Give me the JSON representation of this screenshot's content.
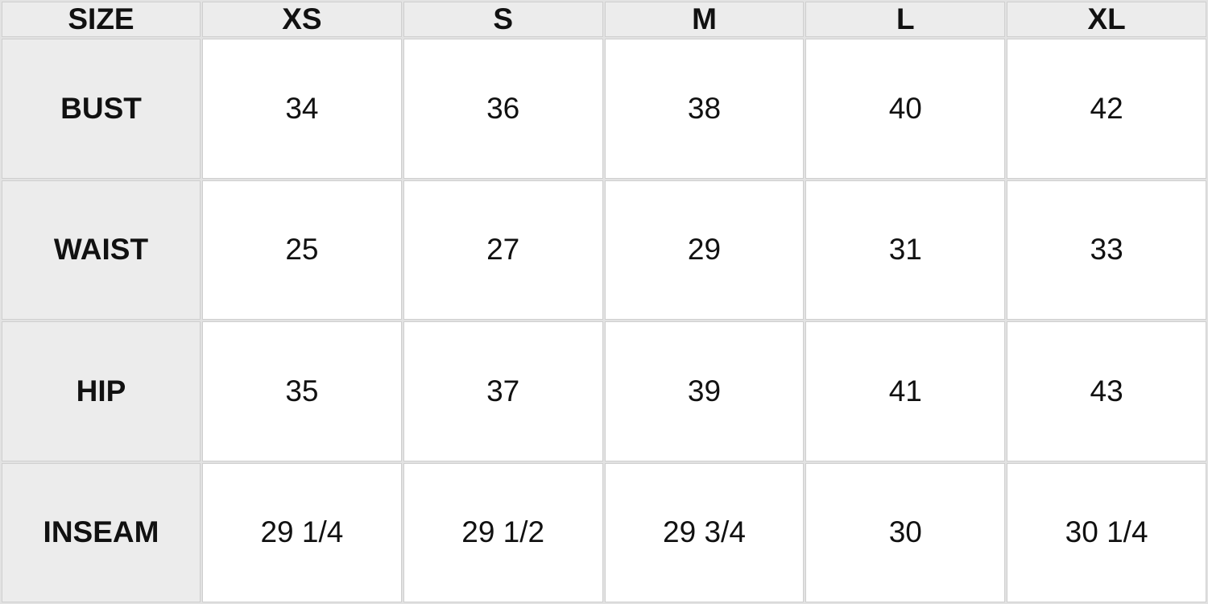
{
  "size_chart": {
    "header_label": "SIZE",
    "sizes": [
      "XS",
      "S",
      "M",
      "L",
      "XL"
    ],
    "rows": [
      {
        "label": "BUST",
        "values": [
          "34",
          "36",
          "38",
          "40",
          "42"
        ]
      },
      {
        "label": "WAIST",
        "values": [
          "25",
          "27",
          "29",
          "31",
          "33"
        ]
      },
      {
        "label": "HIP",
        "values": [
          "35",
          "37",
          "39",
          "41",
          "43"
        ]
      },
      {
        "label": "INSEAM",
        "values": [
          "29 1/4",
          "29 1/2",
          "29 3/4",
          "30",
          "30 1/4"
        ]
      }
    ],
    "colors": {
      "header_bg": "#ececec",
      "cell_bg": "#ffffff",
      "border": "#cfcfcf"
    }
  }
}
